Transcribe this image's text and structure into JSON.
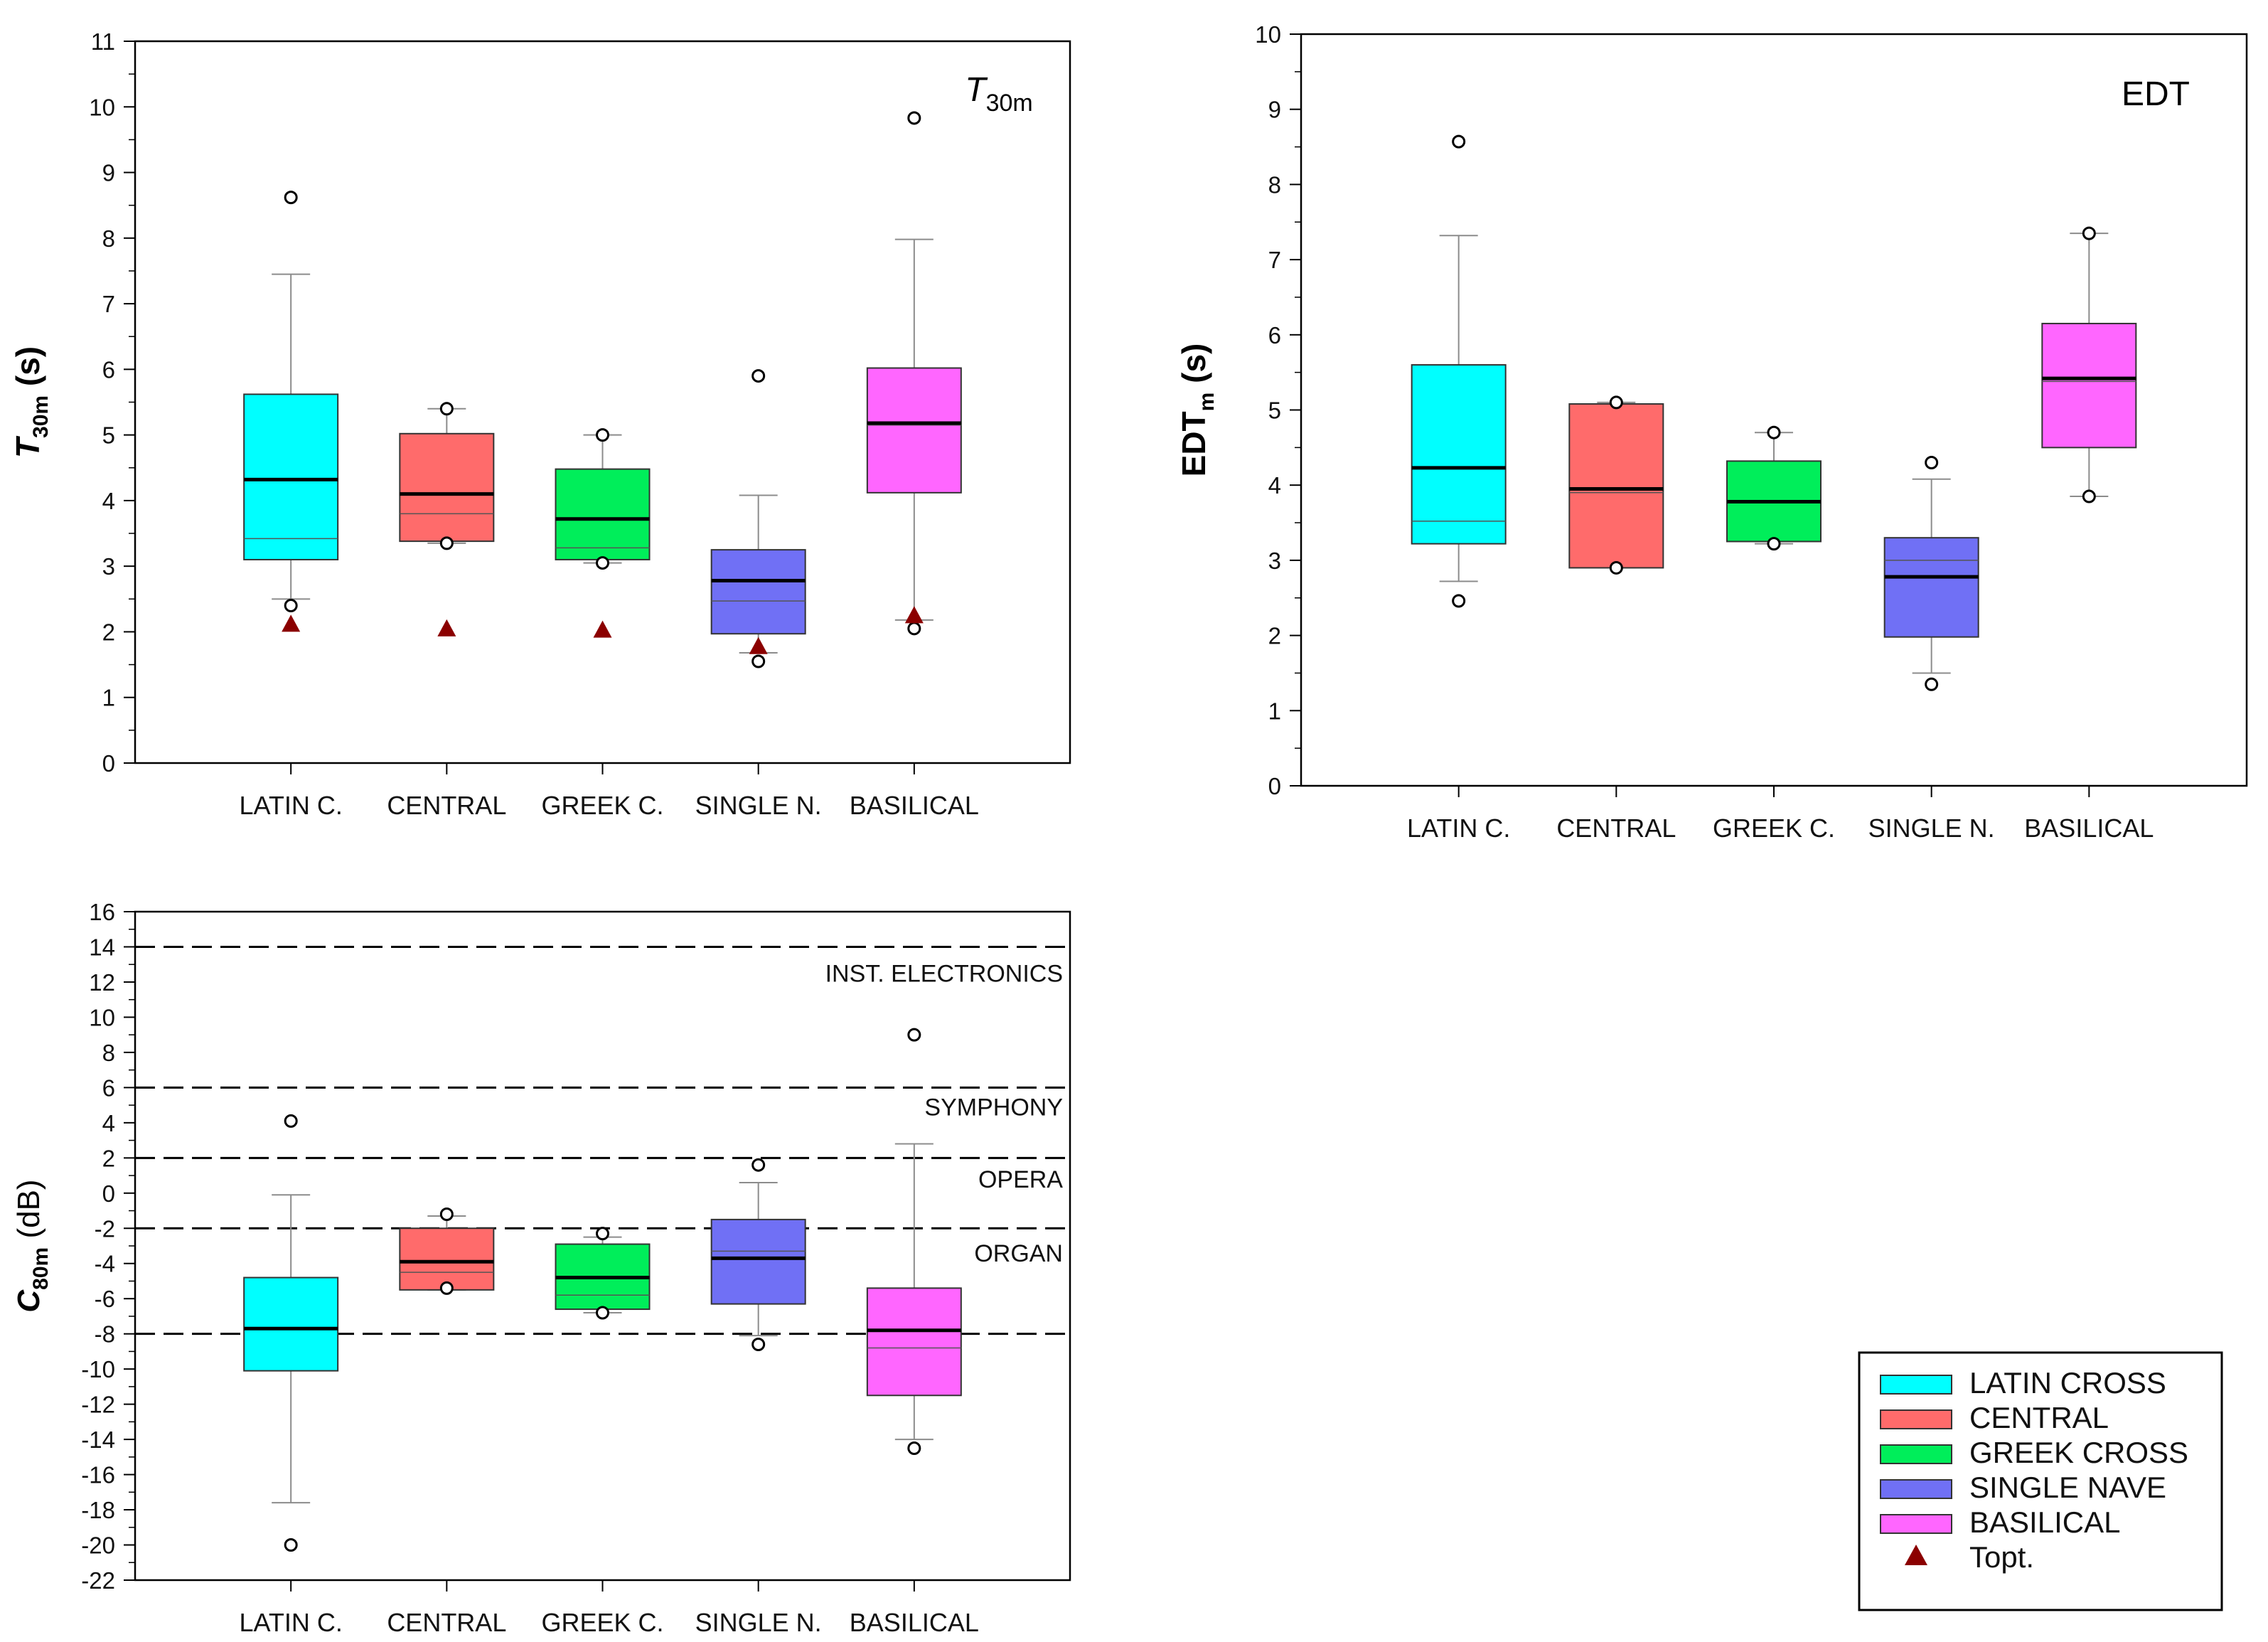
{
  "colors": {
    "LATIN CROSS": "#00ffff",
    "CENTRAL": "#ff6b6b",
    "GREEK CROSS": "#00ee5a",
    "SINGLE NAVE": "#7070f5",
    "BASILICAL": "#ff66ff",
    "topt": "#8b0000"
  },
  "chart_data": [
    {
      "type": "box",
      "id": "t30",
      "annotation": {
        "main": "T",
        "sub": "30m"
      },
      "ylabel": {
        "main": "T",
        "sub": "30m",
        "unit": " (s)"
      },
      "ylim": [
        0,
        11
      ],
      "major_ticks": [
        0,
        1,
        2,
        3,
        4,
        5,
        6,
        7,
        8,
        9,
        10,
        11
      ],
      "tick_labels": [
        "0",
        "1",
        "2",
        "3",
        "4",
        "5",
        "6",
        "7",
        "8",
        "9",
        "10",
        "11"
      ],
      "categories": [
        "LATIN C.",
        "CENTRAL",
        "GREEK C.",
        "SINGLE N.",
        "BASILICAL"
      ],
      "series_keys": [
        "LATIN CROSS",
        "CENTRAL",
        "GREEK CROSS",
        "SINGLE NAVE",
        "BASILICAL"
      ],
      "boxes": [
        {
          "q1": 3.1,
          "median": 3.42,
          "q3": 5.62,
          "mean": 4.32,
          "whisker_low": 2.5,
          "whisker_high": 7.45,
          "outliers": [
            8.62,
            2.4
          ],
          "topt": 2.12
        },
        {
          "q1": 3.38,
          "median": 3.8,
          "q3": 5.02,
          "mean": 4.1,
          "whisker_low": 3.35,
          "whisker_high": 5.4,
          "outliers": [
            5.4,
            3.35
          ],
          "topt": 2.05
        },
        {
          "q1": 3.1,
          "median": 3.28,
          "q3": 4.48,
          "mean": 3.72,
          "whisker_low": 3.05,
          "whisker_high": 5.0,
          "outliers": [
            5.0,
            3.05
          ],
          "topt": 2.03
        },
        {
          "q1": 1.97,
          "median": 2.47,
          "q3": 3.25,
          "mean": 2.78,
          "whisker_low": 1.68,
          "whisker_high": 4.08,
          "outliers": [
            5.9,
            1.55
          ],
          "topt": 1.78
        },
        {
          "q1": 4.12,
          "median": 5.15,
          "q3": 6.02,
          "mean": 5.18,
          "whisker_low": 2.18,
          "whisker_high": 7.98,
          "outliers": [
            9.83,
            2.05
          ],
          "topt": 2.25
        }
      ]
    },
    {
      "type": "box",
      "id": "edt",
      "annotation": {
        "main": "EDT",
        "sub": ""
      },
      "ylabel": {
        "main": "EDT",
        "sub": "m",
        "unit": " (s)"
      },
      "ylim": [
        0,
        10
      ],
      "major_ticks": [
        0,
        1,
        2,
        3,
        4,
        5,
        6,
        7,
        8,
        9,
        10
      ],
      "tick_labels": [
        "0",
        "1",
        "2",
        "3",
        "4",
        "5",
        "6",
        "7",
        "8",
        "9",
        "10"
      ],
      "categories": [
        "LATIN C.",
        "CENTRAL",
        "GREEK C.",
        "SINGLE N.",
        "BASILICAL"
      ],
      "series_keys": [
        "LATIN CROSS",
        "CENTRAL",
        "GREEK CROSS",
        "SINGLE NAVE",
        "BASILICAL"
      ],
      "boxes": [
        {
          "q1": 3.22,
          "median": 3.52,
          "q3": 5.6,
          "mean": 4.23,
          "whisker_low": 2.72,
          "whisker_high": 7.32,
          "outliers": [
            8.57,
            2.46
          ]
        },
        {
          "q1": 2.9,
          "median": 3.9,
          "q3": 5.08,
          "mean": 3.95,
          "whisker_low": 2.9,
          "whisker_high": 5.1,
          "outliers": [
            5.1,
            2.9
          ]
        },
        {
          "q1": 3.25,
          "median": 3.78,
          "q3": 4.32,
          "mean": 3.78,
          "whisker_low": 3.22,
          "whisker_high": 4.7,
          "outliers": [
            4.7,
            3.22
          ]
        },
        {
          "q1": 1.98,
          "median": 3.0,
          "q3": 3.3,
          "mean": 2.78,
          "whisker_low": 1.5,
          "whisker_high": 4.08,
          "outliers": [
            4.3,
            1.35
          ]
        },
        {
          "q1": 4.5,
          "median": 5.38,
          "q3": 6.15,
          "mean": 5.42,
          "whisker_low": 3.85,
          "whisker_high": 7.35,
          "outliers": [
            7.35,
            3.85
          ]
        }
      ]
    },
    {
      "type": "box",
      "id": "c80",
      "annotation": {
        "main": "",
        "sub": ""
      },
      "ylabel": {
        "main": "C",
        "sub": "80m",
        "unit": " (dB)"
      },
      "ylim": [
        -22,
        16
      ],
      "major_ticks": [
        -22,
        -20,
        -18,
        -16,
        -14,
        -12,
        -10,
        -8,
        -6,
        -4,
        -2,
        0,
        2,
        4,
        6,
        8,
        10,
        12,
        14,
        16
      ],
      "tick_labels": [
        "-22",
        "-20",
        "-18",
        "-16",
        "-14",
        "-12",
        "-10",
        "-8",
        "-6",
        "-4",
        "-2",
        "0",
        "2",
        "4",
        "6",
        "8",
        "10",
        "12",
        "14",
        "16"
      ],
      "categories": [
        "LATIN C.",
        "CENTRAL",
        "GREEK C.",
        "SINGLE N.",
        "BASILICAL"
      ],
      "series_keys": [
        "LATIN CROSS",
        "CENTRAL",
        "GREEK CROSS",
        "SINGLE NAVE",
        "BASILICAL"
      ],
      "reference_lines": [
        14,
        6,
        2,
        -2,
        -8
      ],
      "zones": [
        {
          "label": "INST. ELECTRONICS",
          "y": 12.5
        },
        {
          "label": "SYMPHONY",
          "y": 4.9
        },
        {
          "label": "OPERA",
          "y": 0.8
        },
        {
          "label": "ORGAN",
          "y": -3.4
        }
      ],
      "boxes": [
        {
          "q1": -10.1,
          "median": -7.7,
          "q3": -4.8,
          "mean": -7.7,
          "whisker_low": -17.6,
          "whisker_high": -0.1,
          "outliers": [
            4.1,
            -20.0
          ]
        },
        {
          "q1": -5.5,
          "median": -4.5,
          "q3": -2.0,
          "mean": -3.9,
          "whisker_low": -5.5,
          "whisker_high": -1.3,
          "outliers": [
            -1.2,
            -5.4
          ]
        },
        {
          "q1": -6.6,
          "median": -5.8,
          "q3": -2.9,
          "mean": -4.8,
          "whisker_low": -6.8,
          "whisker_high": -2.5,
          "outliers": [
            -2.3,
            -6.8
          ]
        },
        {
          "q1": -6.3,
          "median": -3.3,
          "q3": -1.5,
          "mean": -3.7,
          "whisker_low": -8.1,
          "whisker_high": 0.6,
          "outliers": [
            1.6,
            -8.6
          ]
        },
        {
          "q1": -11.5,
          "median": -8.8,
          "q3": -5.4,
          "mean": -7.8,
          "whisker_low": -14.0,
          "whisker_high": 2.8,
          "outliers": [
            9.0,
            -14.5
          ]
        }
      ]
    }
  ],
  "legend": {
    "items": [
      {
        "key": "LATIN CROSS",
        "label": "LATIN CROSS"
      },
      {
        "key": "CENTRAL",
        "label": "CENTRAL"
      },
      {
        "key": "GREEK CROSS",
        "label": "GREEK CROSS"
      },
      {
        "key": "SINGLE NAVE",
        "label": "SINGLE NAVE"
      },
      {
        "key": "BASILICAL",
        "label": "BASILICAL"
      }
    ],
    "topt_label": "Topt."
  }
}
